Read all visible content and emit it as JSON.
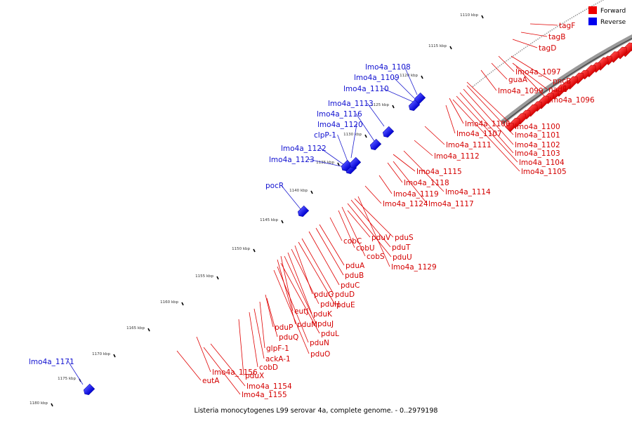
{
  "legend": {
    "forward_label": "Forward",
    "reverse_label": "Reverse",
    "forward_color": "#ee0000",
    "reverse_color": "#0000ee"
  },
  "caption": "Listeria monocytogenes L99 serovar 4a, complete genome. - 0..2979198",
  "ticks": [
    "1110 kbp",
    "1115 kbp",
    "1120 kbp",
    "1125 kbp",
    "1130 kbp",
    "1135 kbp",
    "1140 kbp",
    "1145 kbp",
    "1150 kbp",
    "1155 kbp",
    "1160 kbp",
    "1165 kbp",
    "1170 kbp",
    "1175 kbp",
    "1180 kbp"
  ],
  "forward_labels": [
    "tagF",
    "tagB",
    "tagD",
    "lmo4a_1097",
    "pncB",
    "guaA",
    "nadE",
    "lmo4a_1099",
    "lmo4a_1096",
    "lmo4a_1100",
    "lmo4a_1106",
    "lmo4a_1107",
    "lmo4a_1101",
    "lmo4a_1111",
    "lmo4a_1102",
    "lmo4a_1112",
    "lmo4a_1103",
    "lmo4a_1104",
    "lmo4a_1105",
    "lmo4a_1115",
    "lmo4a_1118",
    "lmo4a_1119",
    "lmo4a_1114",
    "lmo4a_1124",
    "lmo4a_1117",
    "pduV",
    "pduS",
    "cobC",
    "cobU",
    "pduT",
    "cobS",
    "pduU",
    "lmo4a_1129",
    "pduA",
    "pduB",
    "pduC",
    "pduG",
    "pduD",
    "pduH",
    "pduE",
    "eutJ",
    "pduK",
    "pduM",
    "pduJ",
    "pduP",
    "pduL",
    "pduQ",
    "pduN",
    "glpF-1",
    "pduO",
    "ackA-1",
    "cobD",
    "lmo4a_1156",
    "pduX",
    "eutA",
    "lmo4a_1154",
    "lmo4a_1155"
  ],
  "reverse_labels": [
    "lmo4a_1108",
    "lmo4a_1109",
    "lmo4a_1110",
    "lmo4a_1113",
    "lmo4a_1116",
    "lmo4a_1120",
    "clpP-1",
    "lmo4a_1122",
    "lmo4a_1123",
    "pocR",
    "lmo4a_1171"
  ]
}
